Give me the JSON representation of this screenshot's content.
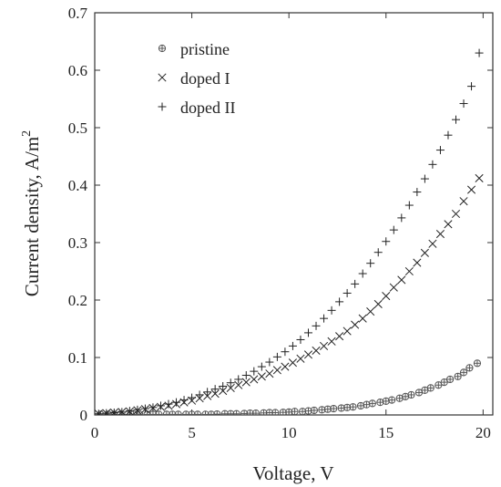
{
  "chart_data": {
    "type": "scatter",
    "xlabel": "Voltage, V",
    "ylabel_main": "Current density, A/m",
    "ylabel_superscript": "2",
    "xlim": [
      0,
      20.5
    ],
    "ylim": [
      0,
      0.7
    ],
    "xticks": [
      0,
      5,
      10,
      15,
      20
    ],
    "yticks": [
      0,
      0.1,
      0.2,
      0.3,
      0.4,
      0.5,
      0.6,
      0.7
    ],
    "xtick_labels": [
      "0",
      "5",
      "10",
      "15",
      "20"
    ],
    "ytick_labels": [
      "0",
      "0.1",
      "0.2",
      "0.3",
      "0.4",
      "0.5",
      "0.6",
      "0.7"
    ],
    "grid": false,
    "legend_position": "top-left",
    "series": [
      {
        "name": "pristine",
        "marker": "circle-plus",
        "x": [
          0.3,
          0.7,
          1,
          1.3,
          1.7,
          2,
          2.3,
          2.7,
          3,
          3.3,
          3.7,
          4,
          4.3,
          4.7,
          5,
          5.3,
          5.7,
          6,
          6.3,
          6.7,
          7,
          7.3,
          7.7,
          8,
          8.3,
          8.7,
          9,
          9.3,
          9.7,
          10,
          10.3,
          10.7,
          11,
          11.3,
          11.7,
          12,
          12.3,
          12.7,
          13,
          13.3,
          13.7,
          14,
          14.3,
          14.7,
          15,
          15.3,
          15.7,
          16,
          16.3,
          16.7,
          17,
          17.3,
          17.7,
          18,
          18.3,
          18.7,
          19,
          19.3,
          19.7
        ],
        "y": [
          0.001,
          0.001,
          0.001,
          0.001,
          0.001,
          0.001,
          0.001,
          0.001,
          0.001,
          0.001,
          0.001,
          0.001,
          0.001,
          0.001,
          0.001,
          0.001,
          0.001,
          0.001,
          0.0015,
          0.002,
          0.002,
          0.002,
          0.0025,
          0.003,
          0.003,
          0.0035,
          0.004,
          0.004,
          0.0045,
          0.005,
          0.006,
          0.006,
          0.007,
          0.008,
          0.009,
          0.01,
          0.011,
          0.012,
          0.013,
          0.014,
          0.016,
          0.018,
          0.02,
          0.022,
          0.024,
          0.026,
          0.029,
          0.032,
          0.035,
          0.039,
          0.043,
          0.047,
          0.052,
          0.057,
          0.062,
          0.067,
          0.074,
          0.082,
          0.09
        ]
      },
      {
        "name": "doped I",
        "marker": "x",
        "x": [
          0.2,
          0.6,
          1,
          1.4,
          1.8,
          2.2,
          2.6,
          3,
          3.4,
          3.8,
          4.2,
          4.6,
          5,
          5.4,
          5.8,
          6.2,
          6.6,
          7,
          7.4,
          7.8,
          8.2,
          8.6,
          9,
          9.4,
          9.8,
          10.2,
          10.6,
          11,
          11.4,
          11.8,
          12.2,
          12.6,
          13,
          13.4,
          13.8,
          14.2,
          14.6,
          15,
          15.4,
          15.8,
          16.2,
          16.6,
          17,
          17.4,
          17.8,
          18.2,
          18.6,
          19,
          19.4,
          19.8
        ],
        "y": [
          0.002,
          0.003,
          0.004,
          0.005,
          0.006,
          0.008,
          0.01,
          0.012,
          0.014,
          0.016,
          0.019,
          0.022,
          0.025,
          0.029,
          0.033,
          0.037,
          0.042,
          0.047,
          0.052,
          0.057,
          0.062,
          0.067,
          0.072,
          0.078,
          0.084,
          0.091,
          0.098,
          0.105,
          0.112,
          0.12,
          0.128,
          0.137,
          0.146,
          0.157,
          0.168,
          0.18,
          0.193,
          0.207,
          0.222,
          0.235,
          0.25,
          0.265,
          0.282,
          0.298,
          0.315,
          0.332,
          0.35,
          0.372,
          0.392,
          0.412
        ]
      },
      {
        "name": "doped II",
        "marker": "plus",
        "x": [
          0.2,
          0.6,
          1,
          1.4,
          1.8,
          2.2,
          2.6,
          3,
          3.4,
          3.8,
          4.2,
          4.6,
          5,
          5.4,
          5.8,
          6.2,
          6.6,
          7,
          7.4,
          7.8,
          8.2,
          8.6,
          9,
          9.4,
          9.8,
          10.2,
          10.6,
          11,
          11.4,
          11.8,
          12.2,
          12.6,
          13,
          13.4,
          13.8,
          14.2,
          14.6,
          15,
          15.4,
          15.8,
          16.2,
          16.6,
          17,
          17.4,
          17.8,
          18.2,
          18.6,
          19,
          19.4,
          19.8
        ],
        "y": [
          0.002,
          0.003,
          0.004,
          0.005,
          0.007,
          0.009,
          0.011,
          0.013,
          0.016,
          0.019,
          0.022,
          0.026,
          0.03,
          0.035,
          0.04,
          0.045,
          0.05,
          0.056,
          0.062,
          0.069,
          0.076,
          0.084,
          0.092,
          0.101,
          0.11,
          0.12,
          0.131,
          0.143,
          0.155,
          0.168,
          0.182,
          0.197,
          0.212,
          0.228,
          0.246,
          0.264,
          0.283,
          0.302,
          0.322,
          0.343,
          0.365,
          0.388,
          0.411,
          0.436,
          0.461,
          0.487,
          0.514,
          0.542,
          0.572,
          0.63
        ]
      }
    ]
  }
}
